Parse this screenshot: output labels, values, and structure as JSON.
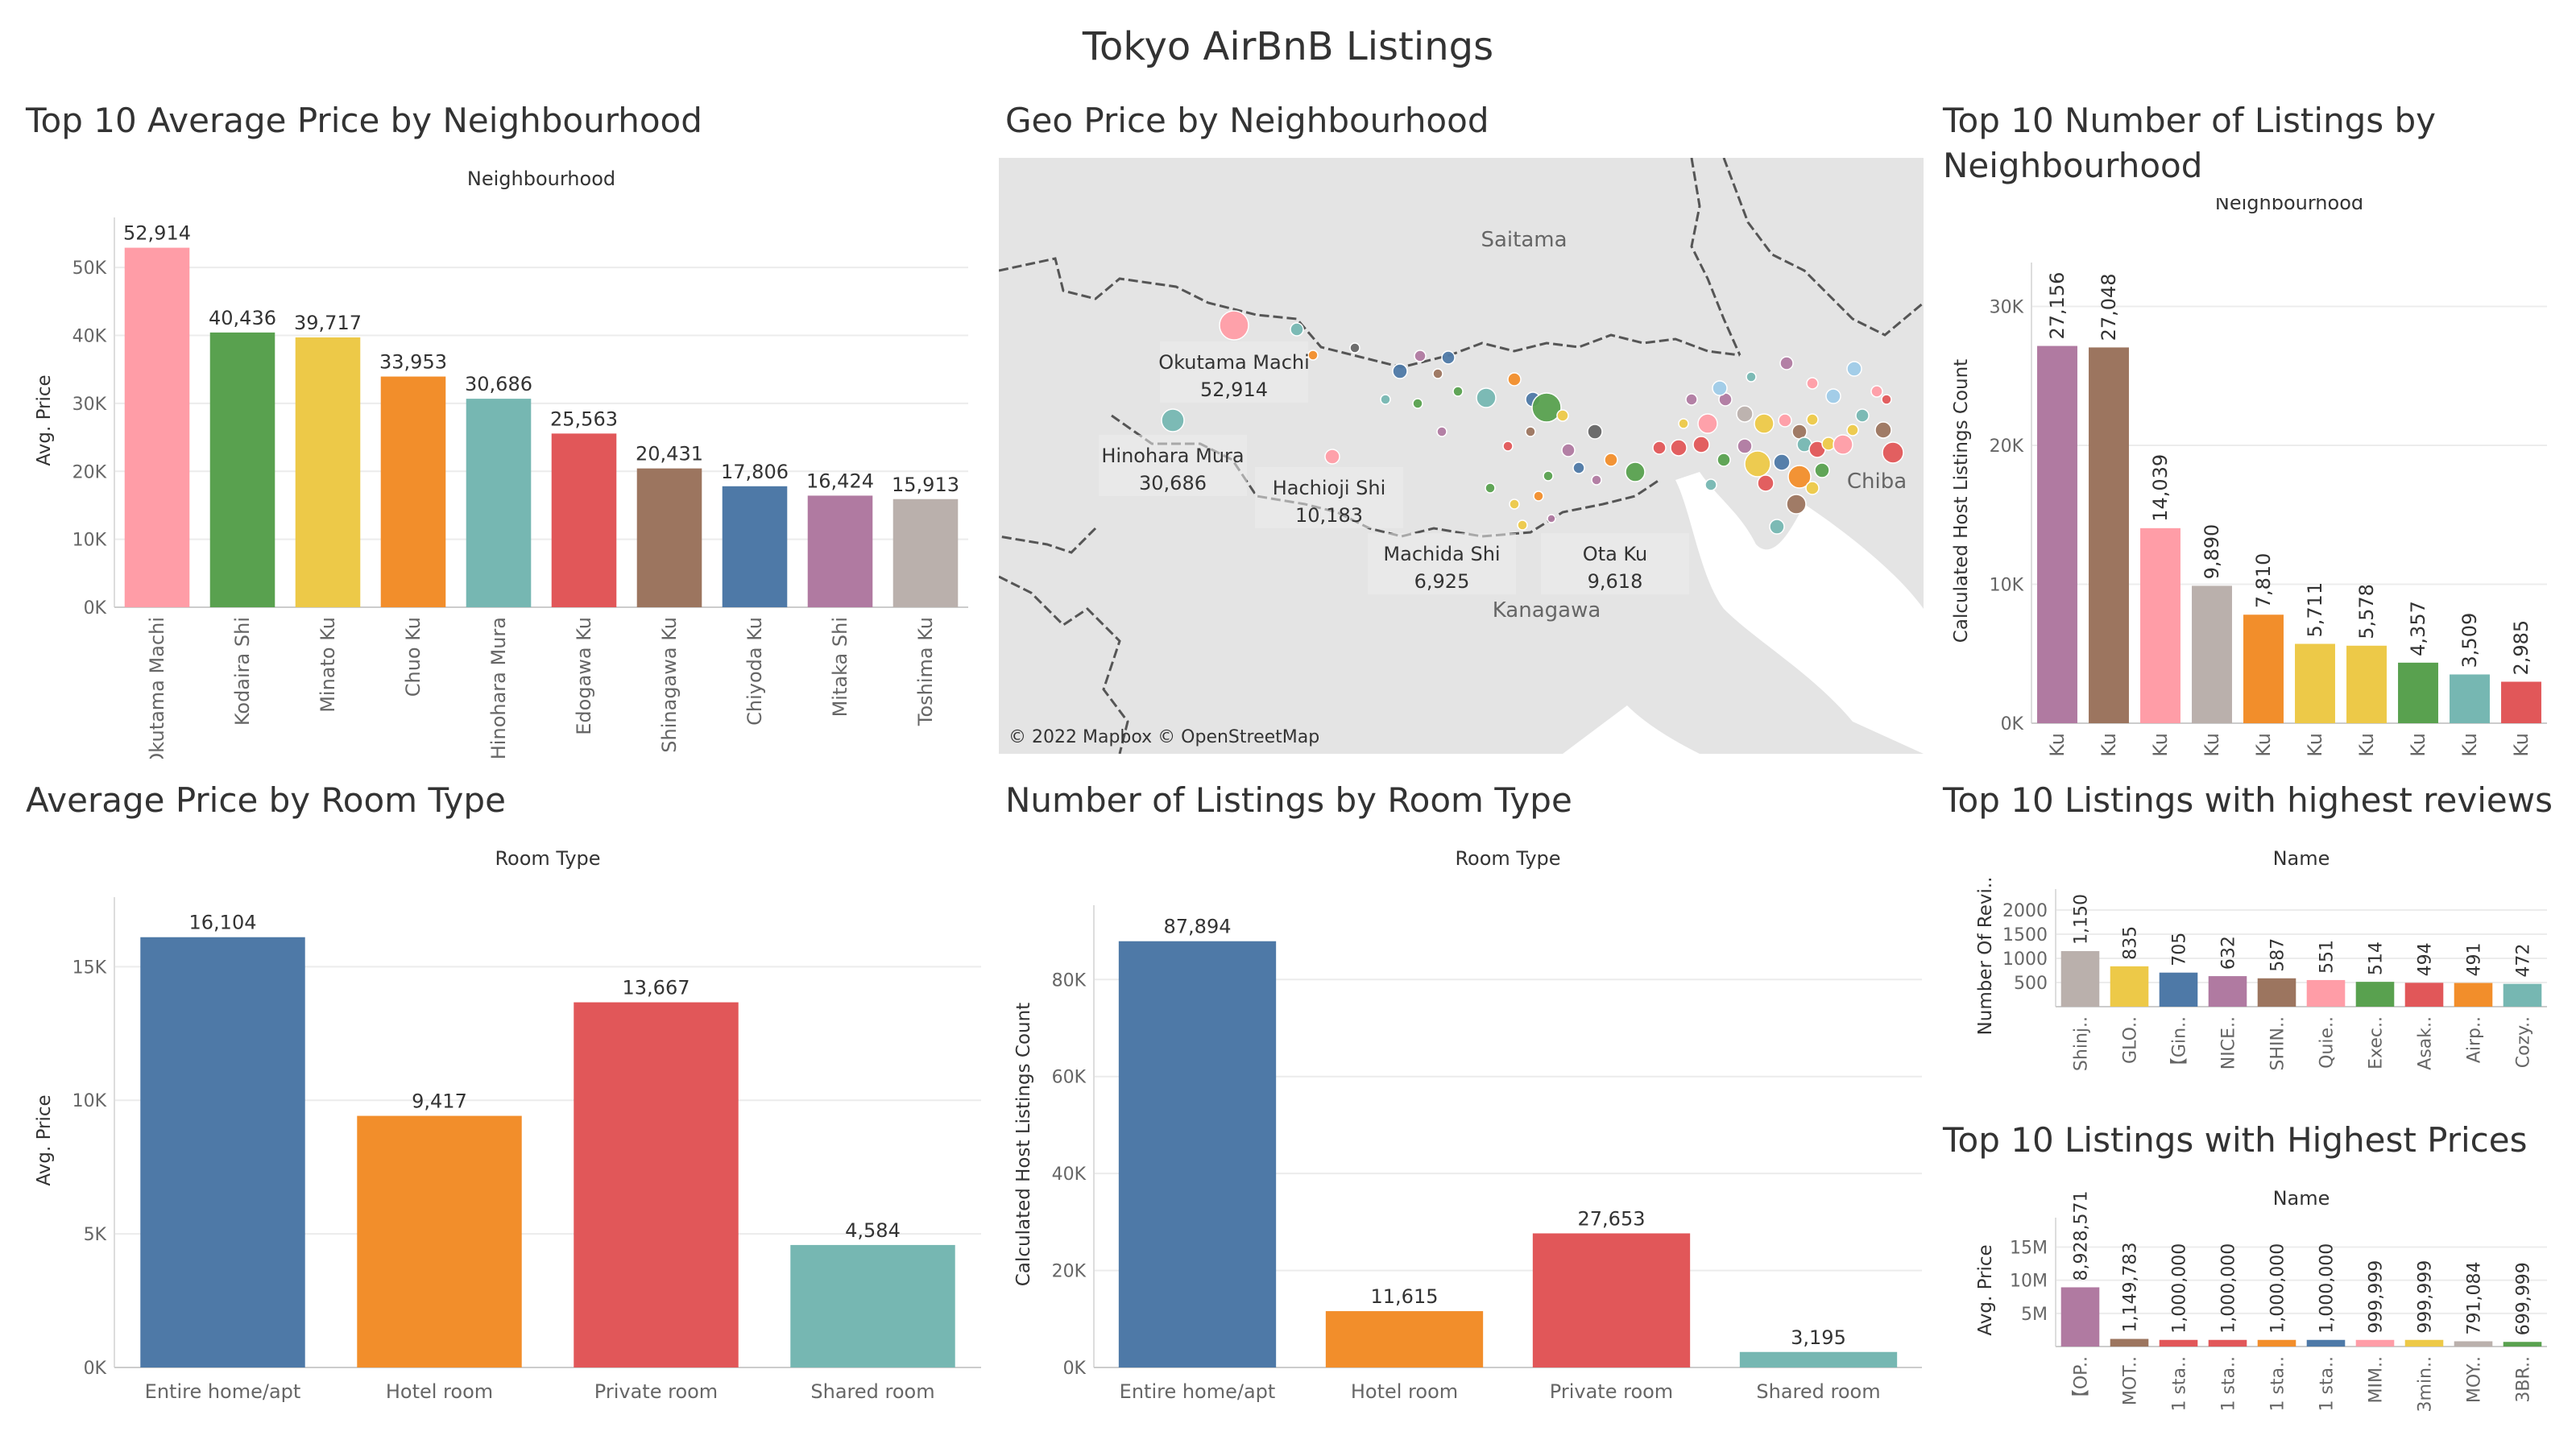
{
  "dashboard": {
    "title": "Tokyo AirBnB Listings"
  },
  "panels": {
    "avg_price_neigh": {
      "title": "Top 10 Average Price by Neighbourhood"
    },
    "geo": {
      "title": "Geo Price by Neighbourhood",
      "credit": "© 2022 Mapbox © OpenStreetMap",
      "regions": [
        "Saitama",
        "Chiba",
        "Kanagawa"
      ]
    },
    "listings_neigh": {
      "title": "Top 10 Number of Listings by Neighbourhood"
    },
    "avg_price_room": {
      "title": "Average Price by Room Type"
    },
    "listings_room": {
      "title": "Number of Listings by Room Type"
    },
    "top_reviews": {
      "title": "Top 10 Listings with highest reviews"
    },
    "top_prices": {
      "title": "Top 10 Listings with Highest Prices"
    }
  },
  "colors": [
    "#ff9da7",
    "#59a14f",
    "#edc948",
    "#f28e2b",
    "#76b7b2",
    "#e15759",
    "#9c755f",
    "#4e79a7",
    "#b07aa1",
    "#bab0ac"
  ],
  "chart_data": [
    {
      "id": "avg_price_neigh",
      "type": "bar",
      "title": "Top 10 Average Price by Neighbourhood",
      "header": "Neighbourhood",
      "ylabel": "Avg. Price",
      "categories": [
        "Okutama Machi",
        "Kodaira Shi",
        "Minato Ku",
        "Chuo Ku",
        "Hinohara Mura",
        "Edogawa Ku",
        "Shinagawa Ku",
        "Chiyoda Ku",
        "Mitaka Shi",
        "Toshima Ku"
      ],
      "values": [
        52914,
        40436,
        39717,
        33953,
        30686,
        25563,
        20431,
        17806,
        16424,
        15913
      ],
      "value_labels": [
        "52,914",
        "40,436",
        "39,717",
        "33,953",
        "30,686",
        "25,563",
        "20,431",
        "17,806",
        "16,424",
        "15,913"
      ],
      "colors": [
        "#ff9da7",
        "#59a14f",
        "#edc948",
        "#f28e2b",
        "#76b7b2",
        "#e15759",
        "#9c755f",
        "#4e79a7",
        "#b07aa1",
        "#bab0ac"
      ],
      "yticks": [
        "0K",
        "10K",
        "20K",
        "30K",
        "40K",
        "50K"
      ],
      "ylim": [
        0,
        55000
      ]
    },
    {
      "id": "geo_points",
      "type": "scatter",
      "title": "Geo Price by Neighbourhood",
      "labels": [
        {
          "name": "Okutama Machi",
          "value": "52,914"
        },
        {
          "name": "Hinohara Mura",
          "value": "30,686"
        },
        {
          "name": "Hachioji Shi",
          "value": "10,183"
        },
        {
          "name": "Machida Shi",
          "value": "6,925"
        },
        {
          "name": "Ota Ku",
          "value": "9,618"
        }
      ]
    },
    {
      "id": "listings_neigh",
      "type": "bar",
      "title": "Top 10 Number of Listings by Neighbourhood",
      "header": "Neighbourhood",
      "ylabel": "Calculated Host Listings Count",
      "categories": [
        "Shinjuku Ku",
        "Taito Ku",
        "Sumida Ku",
        "Toshima Ku",
        "Chuo Ku",
        "Shibuya Ku",
        "Minato Ku",
        "Setagaya Ku",
        "Ota Ku",
        "Nakano Ku"
      ],
      "values": [
        27156,
        27048,
        14039,
        9890,
        7810,
        5711,
        5578,
        4357,
        3509,
        2985
      ],
      "value_labels": [
        "27,156",
        "27,048",
        "14,039",
        "9,890",
        "7,810",
        "5,711",
        "5,578",
        "4,357",
        "3,509",
        "2,985"
      ],
      "colors": [
        "#b07aa1",
        "#9c755f",
        "#ff9da7",
        "#bab0ac",
        "#f28e2b",
        "#edc948",
        "#edc948",
        "#59a14f",
        "#76b7b2",
        "#e15759"
      ],
      "yticks": [
        "0K",
        "10K",
        "20K",
        "30K"
      ],
      "ylim": [
        0,
        32000
      ]
    },
    {
      "id": "avg_price_room",
      "type": "bar",
      "title": "Average Price by Room Type",
      "header": "Room Type",
      "ylabel": "Avg. Price",
      "categories": [
        "Entire home/apt",
        "Hotel room",
        "Private room",
        "Shared room"
      ],
      "values": [
        16104,
        9417,
        13667,
        4584
      ],
      "value_labels": [
        "16,104",
        "9,417",
        "13,667",
        "4,584"
      ],
      "colors": [
        "#4e79a7",
        "#f28e2b",
        "#e15759",
        "#76b7b2"
      ],
      "yticks": [
        "0K",
        "5K",
        "10K",
        "15K"
      ],
      "ylim": [
        0,
        17000
      ]
    },
    {
      "id": "listings_room",
      "type": "bar",
      "title": "Number of Listings by Room Type",
      "header": "Room Type",
      "ylabel": "Calculated Host Listings Count",
      "categories": [
        "Entire home/apt",
        "Hotel room",
        "Private room",
        "Shared room"
      ],
      "values": [
        87894,
        11615,
        27653,
        3195
      ],
      "value_labels": [
        "87,894",
        "11,615",
        "27,653",
        "3,195"
      ],
      "colors": [
        "#4e79a7",
        "#f28e2b",
        "#e15759",
        "#76b7b2"
      ],
      "yticks": [
        "0K",
        "20K",
        "40K",
        "60K",
        "80K"
      ],
      "ylim": [
        0,
        92000
      ]
    },
    {
      "id": "top_reviews",
      "type": "bar",
      "title": "Top 10 Listings with highest reviews",
      "header": "Name",
      "ylabel": "Number Of Revi..",
      "categories": [
        "Shinj..",
        "GLO..",
        "【Gin..",
        "NICE..",
        "SHIN..",
        "Quie..",
        "Exec..",
        "Asak..",
        "Airp..",
        "Cozy.."
      ],
      "values": [
        1150,
        835,
        705,
        632,
        587,
        551,
        514,
        494,
        491,
        472
      ],
      "value_labels": [
        "1,150",
        "835",
        "705",
        "632",
        "587",
        "551",
        "514",
        "494",
        "491",
        "472"
      ],
      "colors": [
        "#bab0ac",
        "#edc948",
        "#4e79a7",
        "#b07aa1",
        "#9c755f",
        "#ff9da7",
        "#59a14f",
        "#e15759",
        "#f28e2b",
        "#76b7b2"
      ],
      "yticks": [
        "500",
        "1000",
        "1500",
        "2000"
      ],
      "ylim": [
        0,
        2100
      ]
    },
    {
      "id": "top_prices",
      "type": "bar",
      "title": "Top 10 Listings with Highest Prices",
      "header": "Name",
      "ylabel": "Avg. Price",
      "categories": [
        "【OP..",
        "MOT..",
        "1 sta..",
        "1 sta..",
        "1 sta..",
        "1 sta..",
        "MIM..",
        "3min..",
        "MOY..",
        "3BR.."
      ],
      "values": [
        8928571,
        1149783,
        1000000,
        1000000,
        1000000,
        1000000,
        999999,
        999999,
        791084,
        699999
      ],
      "value_labels": [
        "8,928,571",
        "1,149,783",
        "1,000,000",
        "1,000,000",
        "1,000,000",
        "1,000,000",
        "999,999",
        "999,999",
        "791,084",
        "699,999"
      ],
      "colors": [
        "#b07aa1",
        "#9c755f",
        "#e15759",
        "#e15759",
        "#f28e2b",
        "#4e79a7",
        "#ff9da7",
        "#edc948",
        "#bab0ac",
        "#59a14f"
      ],
      "yticks": [
        "5M",
        "10M",
        "15M"
      ],
      "ylim": [
        0,
        17000000
      ]
    }
  ]
}
